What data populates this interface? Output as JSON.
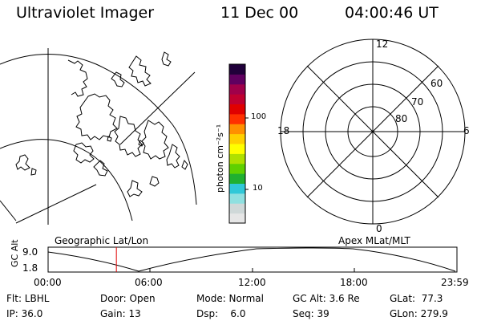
{
  "header": {
    "title": "Ultraviolet Imager",
    "date": "11 Dec 00",
    "time": "04:00:46 UT"
  },
  "colorbar": {
    "unit_label": "photon cm⁻²s⁻¹",
    "tick_100": "100",
    "tick_10": "10",
    "colors": [
      "#e6e6e6",
      "#cfd8d8",
      "#8fe0e0",
      "#30c8d8",
      "#20b030",
      "#60d000",
      "#b0e000",
      "#ffff00",
      "#ffd000",
      "#ff9000",
      "#ff3000",
      "#e00000",
      "#c00030",
      "#a0004a",
      "#600060",
      "#20003a"
    ]
  },
  "polar": {
    "mlt_top": "12",
    "mlt_bottom": "0",
    "mlt_left": "18",
    "mlt_right": "6",
    "lat_60": "60",
    "lat_70": "70",
    "lat_80": "80"
  },
  "left_panel": {
    "label": "Geographic Lat/Lon"
  },
  "right_panel": {
    "label": "Apex MLat/MLT"
  },
  "altitude_plot": {
    "ylabel": "GC Alt",
    "ytick_top": "9.0",
    "ytick_bottom": "1.8",
    "xticks": [
      "00:00",
      "06:00",
      "12:00",
      "18:00",
      "23:59"
    ],
    "current_time_fraction": 0.167
  },
  "info": {
    "flt_label": "Flt: LBHL",
    "ip_label": "IP: 36.0",
    "door_label": "Door: Open",
    "gain_label": "Gain: 13",
    "mode_label": "Mode: Normal",
    "dsp_label": "Dsp:    6.0",
    "gcalt_label": "GC Alt: 3.6 Re",
    "seq_label": "Seq: 39",
    "glat_label": "GLat:  77.3",
    "glon_label": "GLon: 279.9"
  }
}
